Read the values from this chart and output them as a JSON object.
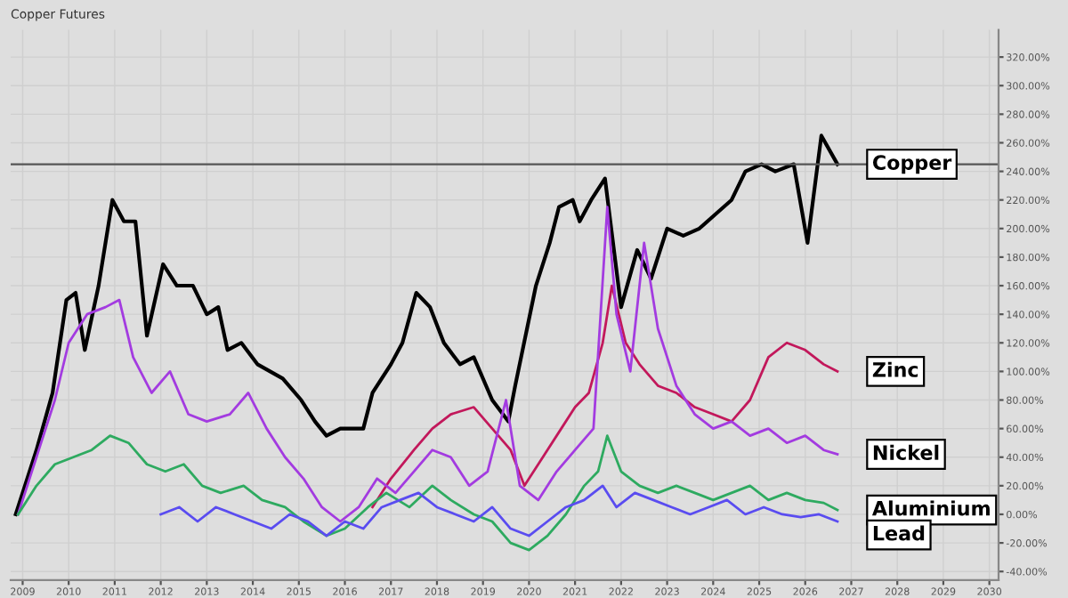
{
  "chart_data": {
    "type": "line",
    "title": "Copper Futures",
    "xlim": [
      2008.74,
      2030.2
    ],
    "ylim": [
      -46,
      339
    ],
    "xticks": [
      2009,
      2010,
      2011,
      2012,
      2013,
      2014,
      2015,
      2016,
      2017,
      2018,
      2019,
      2020,
      2021,
      2022,
      2023,
      2024,
      2025,
      2026,
      2027,
      2028,
      2029,
      2030
    ],
    "yticks": [
      {
        "value": -40,
        "label": "-40.00%"
      },
      {
        "value": -20,
        "label": "-20.00%"
      },
      {
        "value": 0,
        "label": "0.00%"
      },
      {
        "value": 20,
        "label": "20.00%"
      },
      {
        "value": 40,
        "label": "40.00%"
      },
      {
        "value": 60,
        "label": "60.00%"
      },
      {
        "value": 80,
        "label": "80.00%"
      },
      {
        "value": 100,
        "label": "100.00%"
      },
      {
        "value": 120,
        "label": "120.00%"
      },
      {
        "value": 140,
        "label": "140.00%"
      },
      {
        "value": 160,
        "label": "160.00%"
      },
      {
        "value": 180,
        "label": "180.00%"
      },
      {
        "value": 200,
        "label": "200.00%"
      },
      {
        "value": 220,
        "label": "220.00%"
      },
      {
        "value": 240,
        "label": "240.00%"
      },
      {
        "value": 260,
        "label": "260.00%"
      },
      {
        "value": 280,
        "label": "280.00%"
      },
      {
        "value": 300,
        "label": "300.00%"
      },
      {
        "value": 320,
        "label": "320.00%"
      }
    ],
    "grid": true,
    "legend": false,
    "marker": "none",
    "line_style": "solid",
    "ref_lines": [
      {
        "axis": "y",
        "value": 245,
        "color": "#555555"
      }
    ],
    "series": [
      {
        "name": "Copper",
        "color": "#000000",
        "x": [
          2008.85,
          2009.3,
          2009.65,
          2009.95,
          2010.15,
          2010.35,
          2010.65,
          2010.95,
          2011.2,
          2011.45,
          2011.7,
          2012.05,
          2012.35,
          2012.7,
          2013.0,
          2013.25,
          2013.45,
          2013.75,
          2014.1,
          2014.65,
          2015.05,
          2015.35,
          2015.6,
          2015.9,
          2016.4,
          2016.6,
          2017.0,
          2017.25,
          2017.55,
          2017.85,
          2018.15,
          2018.5,
          2018.8,
          2019.2,
          2019.55,
          2019.7,
          2020.15,
          2020.45,
          2020.65,
          2020.95,
          2021.1,
          2021.35,
          2021.65,
          2022.0,
          2022.35,
          2022.65,
          2023.0,
          2023.35,
          2023.7,
          2024.05,
          2024.4,
          2024.7,
          2025.05,
          2025.35,
          2025.75,
          2026.05,
          2026.35,
          2026.7
        ],
        "values": [
          0,
          45,
          85,
          150,
          155,
          115,
          160,
          220,
          205,
          205,
          125,
          175,
          160,
          160,
          140,
          145,
          115,
          120,
          105,
          95,
          80,
          65,
          55,
          60,
          60,
          85,
          105,
          120,
          155,
          145,
          120,
          105,
          110,
          80,
          65,
          90,
          160,
          190,
          215,
          220,
          205,
          220,
          235,
          145,
          185,
          165,
          200,
          195,
          200,
          210,
          220,
          240,
          245,
          240,
          245,
          190,
          265,
          245
        ]
      },
      {
        "name": "Zinc",
        "color": "#c2185b",
        "x": [
          2016.6,
          2017.0,
          2017.5,
          2017.9,
          2018.3,
          2018.8,
          2019.2,
          2019.6,
          2019.9,
          2020.3,
          2020.7,
          2021.0,
          2021.3,
          2021.6,
          2021.8,
          2022.1,
          2022.4,
          2022.8,
          2023.2,
          2023.6,
          2024.0,
          2024.4,
          2024.8,
          2025.2,
          2025.6,
          2026.0,
          2026.4,
          2026.7
        ],
        "values": [
          5,
          25,
          45,
          60,
          70,
          75,
          60,
          45,
          20,
          40,
          60,
          75,
          85,
          120,
          160,
          120,
          105,
          90,
          85,
          75,
          70,
          65,
          80,
          110,
          120,
          115,
          105,
          100
        ]
      },
      {
        "name": "Nickel",
        "color": "#a33be0",
        "x": [
          2008.9,
          2009.3,
          2009.7,
          2010.0,
          2010.4,
          2010.8,
          2011.1,
          2011.4,
          2011.8,
          2012.2,
          2012.6,
          2013.0,
          2013.5,
          2013.9,
          2014.3,
          2014.7,
          2015.1,
          2015.5,
          2015.9,
          2016.3,
          2016.7,
          2017.1,
          2017.5,
          2017.9,
          2018.3,
          2018.7,
          2019.1,
          2019.5,
          2019.8,
          2020.2,
          2020.6,
          2021.0,
          2021.4,
          2021.7,
          2021.9,
          2022.2,
          2022.5,
          2022.8,
          2023.2,
          2023.6,
          2024.0,
          2024.4,
          2024.8,
          2025.2,
          2025.6,
          2026.0,
          2026.4,
          2026.7
        ],
        "values": [
          0,
          40,
          80,
          120,
          140,
          145,
          150,
          110,
          85,
          100,
          70,
          65,
          70,
          85,
          60,
          40,
          25,
          5,
          -5,
          5,
          25,
          15,
          30,
          45,
          40,
          20,
          30,
          80,
          20,
          10,
          30,
          45,
          60,
          215,
          140,
          100,
          190,
          130,
          90,
          70,
          60,
          65,
          55,
          60,
          50,
          55,
          45,
          42
        ]
      },
      {
        "name": "Aluminium",
        "color": "#2eaa60",
        "x": [
          2008.9,
          2009.3,
          2009.7,
          2010.1,
          2010.5,
          2010.9,
          2011.3,
          2011.7,
          2012.1,
          2012.5,
          2012.9,
          2013.3,
          2013.8,
          2014.2,
          2014.7,
          2015.1,
          2015.6,
          2016.0,
          2016.5,
          2016.9,
          2017.4,
          2017.9,
          2018.3,
          2018.8,
          2019.2,
          2019.6,
          2020.0,
          2020.4,
          2020.8,
          2021.2,
          2021.5,
          2021.7,
          2022.0,
          2022.4,
          2022.8,
          2023.2,
          2023.6,
          2024.0,
          2024.4,
          2024.8,
          2025.2,
          2025.6,
          2026.0,
          2026.4,
          2026.7
        ],
        "values": [
          0,
          20,
          35,
          40,
          45,
          55,
          50,
          35,
          30,
          35,
          20,
          15,
          20,
          10,
          5,
          -5,
          -15,
          -10,
          5,
          15,
          5,
          20,
          10,
          0,
          -5,
          -20,
          -25,
          -15,
          0,
          20,
          30,
          55,
          30,
          20,
          15,
          20,
          15,
          10,
          15,
          20,
          10,
          15,
          10,
          8,
          3
        ]
      },
      {
        "name": "Lead",
        "color": "#5a4cf0",
        "x": [
          2012.0,
          2012.4,
          2012.8,
          2013.2,
          2013.6,
          2014.0,
          2014.4,
          2014.8,
          2015.2,
          2015.6,
          2016.0,
          2016.4,
          2016.8,
          2017.2,
          2017.6,
          2018.0,
          2018.4,
          2018.8,
          2019.2,
          2019.6,
          2020.0,
          2020.4,
          2020.8,
          2021.2,
          2021.6,
          2021.9,
          2022.3,
          2022.7,
          2023.1,
          2023.5,
          2023.9,
          2024.3,
          2024.7,
          2025.1,
          2025.5,
          2025.9,
          2026.3,
          2026.7
        ],
        "values": [
          0,
          5,
          -5,
          5,
          0,
          -5,
          -10,
          0,
          -5,
          -15,
          -5,
          -10,
          5,
          10,
          15,
          5,
          0,
          -5,
          5,
          -10,
          -15,
          -5,
          5,
          10,
          20,
          5,
          15,
          10,
          5,
          0,
          5,
          10,
          0,
          5,
          0,
          -2,
          0,
          -5
        ]
      }
    ]
  }
}
